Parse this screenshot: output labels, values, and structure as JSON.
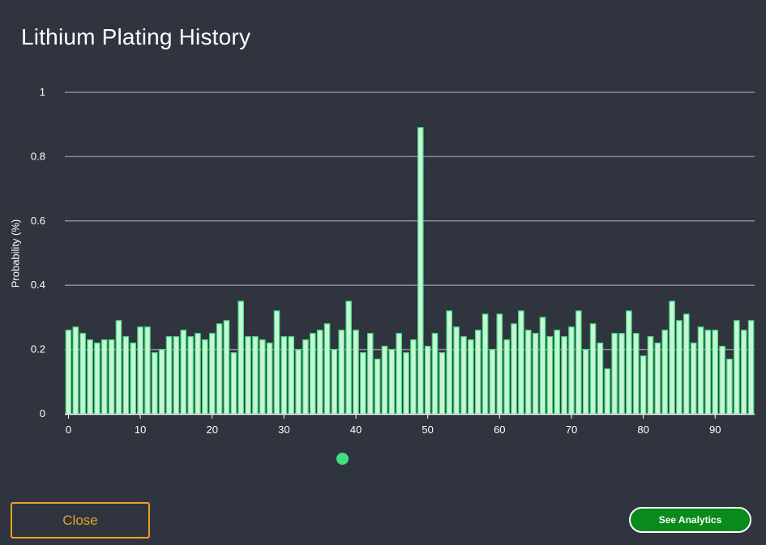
{
  "header": {
    "title": "Lithium Plating History"
  },
  "footer": {
    "close_label": "Close",
    "analytics_label": "See Analytics"
  },
  "colors": {
    "background": "#2f343e",
    "bar_fill": "#c8f5d6",
    "bar_stroke": "#3ee07f",
    "grid": "#8a8e96",
    "close_accent": "#e8a22a",
    "analytics_bg": "#0a8a1a"
  },
  "chart_data": {
    "type": "bar",
    "title": "Lithium Plating History",
    "xlabel": "",
    "ylabel": "Probability (%)",
    "ylim": [
      0,
      1
    ],
    "yticks": [
      0,
      0.2,
      0.4,
      0.6,
      0.8,
      1
    ],
    "ytick_labels": [
      "0",
      "0.2",
      "0.4",
      "0.6",
      "0.8",
      "1"
    ],
    "xticks": [
      0,
      10,
      20,
      30,
      40,
      50,
      60,
      70,
      80,
      90
    ],
    "xlim": [
      -0.5,
      95.5
    ],
    "grid": "horizontal",
    "legend": {
      "placement": "bottom-center",
      "label": ""
    },
    "x": [
      0,
      1,
      2,
      3,
      4,
      5,
      6,
      7,
      8,
      9,
      10,
      11,
      12,
      13,
      14,
      15,
      16,
      17,
      18,
      19,
      20,
      21,
      22,
      23,
      24,
      25,
      26,
      27,
      28,
      29,
      30,
      31,
      32,
      33,
      34,
      35,
      36,
      37,
      38,
      39,
      40,
      41,
      42,
      43,
      44,
      45,
      46,
      47,
      48,
      49,
      50,
      51,
      52,
      53,
      54,
      55,
      56,
      57,
      58,
      59,
      60,
      61,
      62,
      63,
      64,
      65,
      66,
      67,
      68,
      69,
      70,
      71,
      72,
      73,
      74,
      75,
      76,
      77,
      78,
      79,
      80,
      81,
      82,
      83,
      84,
      85,
      86,
      87,
      88,
      89,
      90,
      91,
      92,
      93,
      94,
      95
    ],
    "values": [
      0.26,
      0.27,
      0.25,
      0.23,
      0.22,
      0.23,
      0.23,
      0.29,
      0.24,
      0.22,
      0.27,
      0.27,
      0.19,
      0.2,
      0.24,
      0.24,
      0.26,
      0.24,
      0.25,
      0.23,
      0.25,
      0.28,
      0.29,
      0.19,
      0.35,
      0.24,
      0.24,
      0.23,
      0.22,
      0.32,
      0.24,
      0.24,
      0.2,
      0.23,
      0.25,
      0.26,
      0.28,
      0.2,
      0.26,
      0.35,
      0.26,
      0.19,
      0.25,
      0.17,
      0.21,
      0.2,
      0.25,
      0.19,
      0.23,
      0.89,
      0.21,
      0.25,
      0.19,
      0.32,
      0.27,
      0.24,
      0.23,
      0.26,
      0.31,
      0.2,
      0.31,
      0.23,
      0.28,
      0.32,
      0.26,
      0.25,
      0.3,
      0.24,
      0.26,
      0.24,
      0.27,
      0.32,
      0.2,
      0.28,
      0.22,
      0.14,
      0.25,
      0.25,
      0.32,
      0.25,
      0.18,
      0.24,
      0.22,
      0.26,
      0.35,
      0.29,
      0.31,
      0.22,
      0.27,
      0.26,
      0.26,
      0.21,
      0.17,
      0.29,
      0.26,
      0.29
    ]
  }
}
